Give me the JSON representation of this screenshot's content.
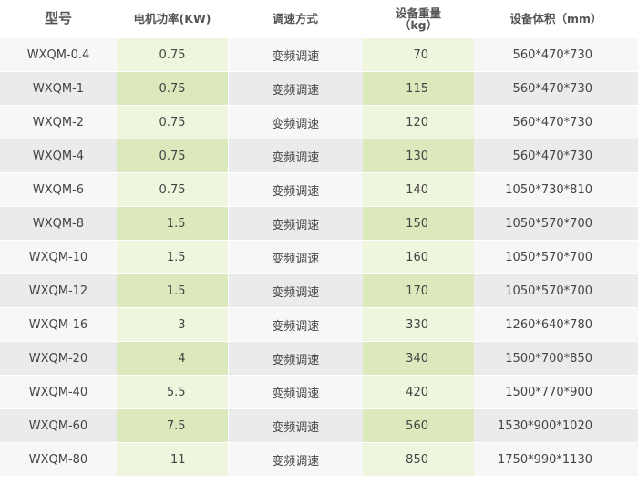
{
  "header": [
    "型号",
    "电机功率(KW)",
    "调速方式",
    [
      "设备重量",
      "（kg）"
    ],
    "设备体积（mm）"
  ],
  "rows": [
    [
      "WXQM-0.4",
      0.75,
      "变频调速",
      70,
      "560*470*730"
    ],
    [
      "WXQM-1",
      0.75,
      "变频调速",
      115,
      "560*470*730"
    ],
    [
      "WXQM-2",
      0.75,
      "变频调速",
      120,
      "560*470*730"
    ],
    [
      "WXQM-4",
      0.75,
      "变频调速",
      130,
      "560*470*730"
    ],
    [
      "WXQM-6",
      0.75,
      "变频调速",
      140,
      "1050*730*810"
    ],
    [
      "WXQM-8",
      1.5,
      "变频调速",
      150,
      "1050*570*700"
    ],
    [
      "WXQM-10",
      1.5,
      "变频调速",
      160,
      "1050*570*700"
    ],
    [
      "WXQM-12",
      1.5,
      "变频调速",
      170,
      "1050*570*700"
    ],
    [
      "WXQM-16",
      3,
      "变频调速",
      330,
      "1260*640*780"
    ],
    [
      "WXQM-20",
      4,
      "变频调速",
      340,
      "1500*700*850"
    ],
    [
      "WXQM-40",
      5.5,
      "变频调速",
      420,
      "1500*770*900"
    ],
    [
      "WXQM-60",
      7.5,
      "变频调速",
      560,
      "1530*900*1020"
    ],
    [
      "WXQM-80",
      11,
      "变频调速",
      850,
      "1750*990*1130"
    ]
  ]
}
